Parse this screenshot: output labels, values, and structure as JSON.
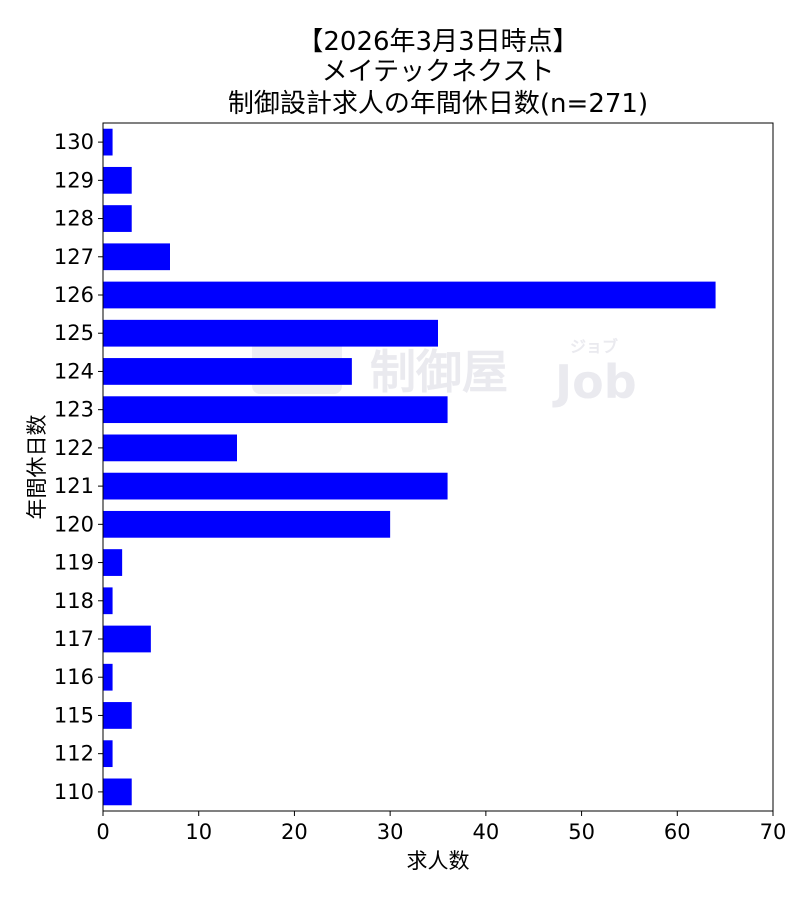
{
  "chart_data": {
    "type": "bar",
    "orientation": "horizontal",
    "title_lines": [
      "【2026年3月3日時点】",
      "メイテックネクスト",
      "制御設計求人の年間休日数(n=271)"
    ],
    "xlabel": "求人数",
    "ylabel": "年間休日数",
    "categories": [
      "110",
      "112",
      "115",
      "116",
      "117",
      "118",
      "119",
      "120",
      "121",
      "122",
      "123",
      "124",
      "125",
      "126",
      "127",
      "128",
      "129",
      "130"
    ],
    "values": [
      3,
      1,
      3,
      1,
      5,
      1,
      2,
      30,
      36,
      14,
      36,
      26,
      35,
      64,
      7,
      3,
      3,
      1
    ],
    "xlim": [
      0,
      70
    ],
    "xticks": [
      0,
      10,
      20,
      30,
      40,
      50,
      60,
      70
    ],
    "grid": false,
    "bar_color": "#0000ff",
    "watermark": "制御屋 ジョブ Job"
  }
}
